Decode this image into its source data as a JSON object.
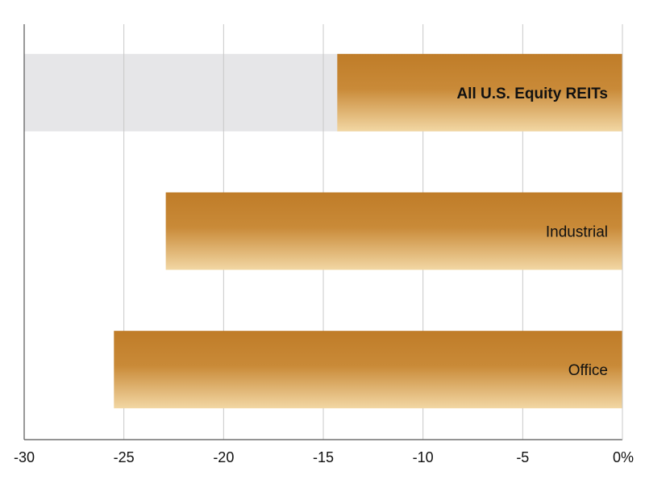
{
  "chart_data": {
    "type": "bar",
    "orientation": "horizontal",
    "categories": [
      "All U.S. Equity REITs",
      "Industrial",
      "Office"
    ],
    "values": [
      -14.3,
      -22.9,
      -25.5
    ],
    "highlight_category": "All U.S. Equity REITs",
    "xlim": [
      -30,
      0
    ],
    "xticks": [
      -30,
      -25,
      -20,
      -15,
      -10,
      -5,
      0
    ],
    "xtick_labels": [
      "-30",
      "-25",
      "-20",
      "-15",
      "-10",
      "-5",
      "0%"
    ],
    "grid": true,
    "title": "",
    "xlabel": "",
    "ylabel": "",
    "colors": {
      "bar_top": "#bf7c28",
      "bar_mid": "#c98a38",
      "bar_bottom": "#f2d7a4",
      "highlight_band": "#e6e6e8",
      "gridline": "#c8c8c8",
      "axis": "#555555"
    }
  }
}
